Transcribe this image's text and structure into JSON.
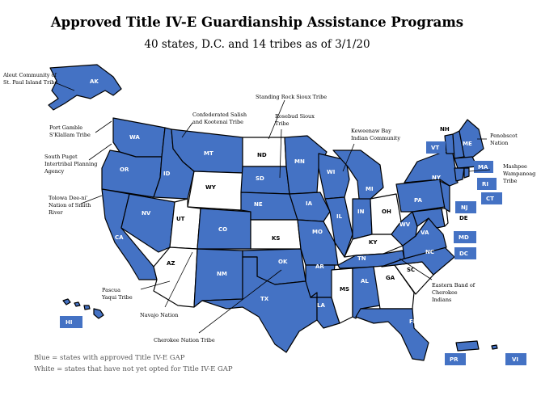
{
  "header": {
    "title": "Approved Title IV-E Guardianship Assistance Programs",
    "subtitle": "40 states, D.C. and 14 tribes as of 3/1/20"
  },
  "colors": {
    "approved": "#4472c4",
    "not_opted": "#ffffff"
  },
  "states": {
    "AK": "AK",
    "HI": "HI",
    "WA": "WA",
    "OR": "OR",
    "CA": "CA",
    "NV": "NV",
    "ID": "ID",
    "MT": "MT",
    "WY": "WY",
    "UT": "UT",
    "AZ": "AZ",
    "CO": "CO",
    "NM": "NM",
    "ND": "ND",
    "SD": "SD",
    "NE": "NE",
    "KS": "KS",
    "OK": "OK",
    "TX": "TX",
    "MN": "MN",
    "IA": "IA",
    "MO": "MO",
    "AR": "AR",
    "LA": "LA",
    "WI": "WI",
    "IL": "IL",
    "MS": "MS",
    "MI": "MI",
    "IN": "IN",
    "KY": "KY",
    "TN": "TN",
    "AL": "AL",
    "OH": "OH",
    "GA": "GA",
    "FL": "FL",
    "SC": "SC",
    "NC": "NC",
    "VA": "VA",
    "WV": "WV",
    "PA": "PA",
    "NY": "NY",
    "ME": "ME",
    "VT": "VT",
    "NH": "NH",
    "MA": "MA",
    "RI": "RI",
    "CT": "CT",
    "NJ": "NJ",
    "DE": "DE",
    "MD": "MD",
    "DC": "DC",
    "PR": "PR",
    "VI": "VI"
  },
  "tribes": {
    "aleut_1": "Aleut Community of",
    "aleut_2": "St. Paul Island Tribe",
    "port_gamble_1": "Port Gamble",
    "port_gamble_2": "S'Klallam Tribe",
    "south_puget_1": "South Puget",
    "south_puget_2": "Intertribal Planning",
    "south_puget_3": "Agency",
    "tolowa_1": "Tolowa Dee-ni'",
    "tolowa_2": "Nation of Smith",
    "tolowa_3": "River",
    "salish_1": "Confederated Salish",
    "salish_2": "and Kootenai Tribe",
    "standing_rock": "Standing Rock Sioux Tribe",
    "rosebud_1": "Rosebud Sioux",
    "rosebud_2": "Tribe",
    "keweenaw_1": "Keweenaw Bay",
    "keweenaw_2": "Indian Community",
    "penobscot_1": "Penobscot",
    "penobscot_2": "Nation",
    "mashpee_1": "Mashpee",
    "mashpee_2": "Wampanoag",
    "mashpee_3": "Tribe",
    "cherokee_east_1": "Eastern Band of",
    "cherokee_east_2": "Cherokee",
    "cherokee_east_3": "Indians",
    "pascua_1": "Pascua",
    "pascua_2": "Yaqui Tribe",
    "navajo": "Navajo Nation",
    "cherokee_nation": "Cherokee Nation Tribe"
  },
  "legend": {
    "blue_line": "Blue = states with approved Title IV-E GAP",
    "white_line": "White = states that have not yet opted for Title IV-E GAP"
  }
}
